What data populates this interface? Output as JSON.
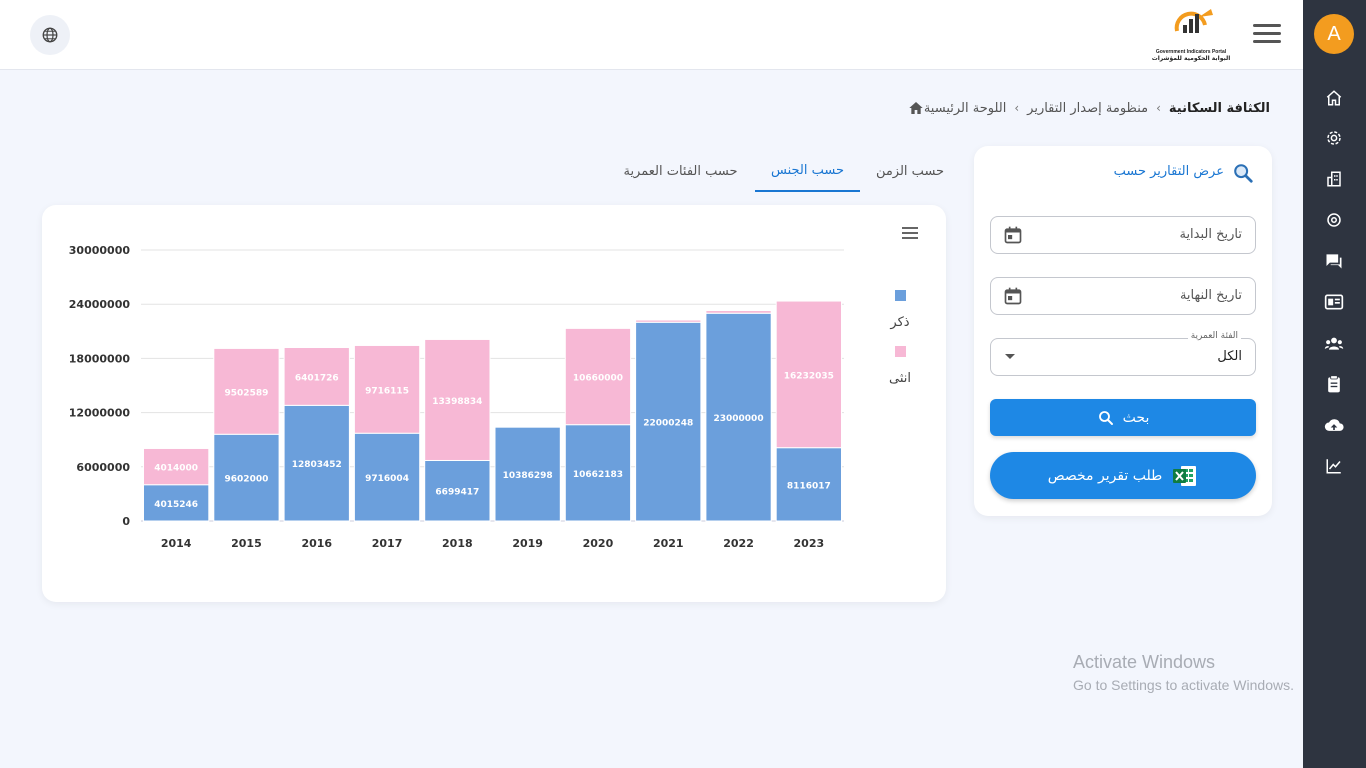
{
  "header": {
    "logo_en": "Government Indicators Portal",
    "logo_ar": "البوابة الحكومية للمؤشرات"
  },
  "sidebar": {
    "avatar_letter": "A",
    "icons": [
      "home-icon",
      "settings-icon",
      "buildings-icon",
      "target-icon",
      "chat-icon",
      "id-card-icon",
      "users-icon",
      "clipboard-icon",
      "cloud-upload-icon",
      "line-chart-icon"
    ]
  },
  "breadcrumb": {
    "home": "اللوحة الرئيسية",
    "section": "منظومة إصدار التقارير",
    "current": "الكثافة السكانية"
  },
  "filter": {
    "title": "عرض التقارير حسب",
    "start_date_placeholder": "تاريخ البداية",
    "end_date_placeholder": "تاريخ النهاية",
    "age_group_label": "الفئة العمرية",
    "age_group_value": "الكل",
    "search_label": "بحث",
    "custom_report_label": "طلب تقرير مخصص"
  },
  "tabs": [
    {
      "label": "حسب الزمن",
      "active": false
    },
    {
      "label": "حسب الجنس",
      "active": true
    },
    {
      "label": "حسب الفئات العمرية",
      "active": false
    }
  ],
  "chart_data": {
    "type": "bar",
    "stacked": true,
    "categories": [
      "2014",
      "2015",
      "2016",
      "2017",
      "2018",
      "2019",
      "2020",
      "2021",
      "2022",
      "2023"
    ],
    "series": [
      {
        "name": "ذكر",
        "color": "#6b9fdc",
        "values": [
          4015246,
          9602000,
          12803452,
          9716004,
          6699417,
          10386298,
          10662183,
          22000248,
          23000000,
          8116017
        ]
      },
      {
        "name": "انثى",
        "color": "#f7b8d5",
        "values": [
          4014000,
          9502589,
          6401726,
          9716115,
          13398834,
          0,
          10660000,
          250000,
          300000,
          16232035
        ]
      }
    ],
    "yticks": [
      0,
      6000000,
      12000000,
      18000000,
      24000000,
      30000000
    ],
    "ylim": [
      0,
      30000000
    ],
    "legend_position": "right",
    "grid": true
  },
  "watermark": {
    "line1": "Activate Windows",
    "line2": "Go to Settings to activate Windows."
  }
}
